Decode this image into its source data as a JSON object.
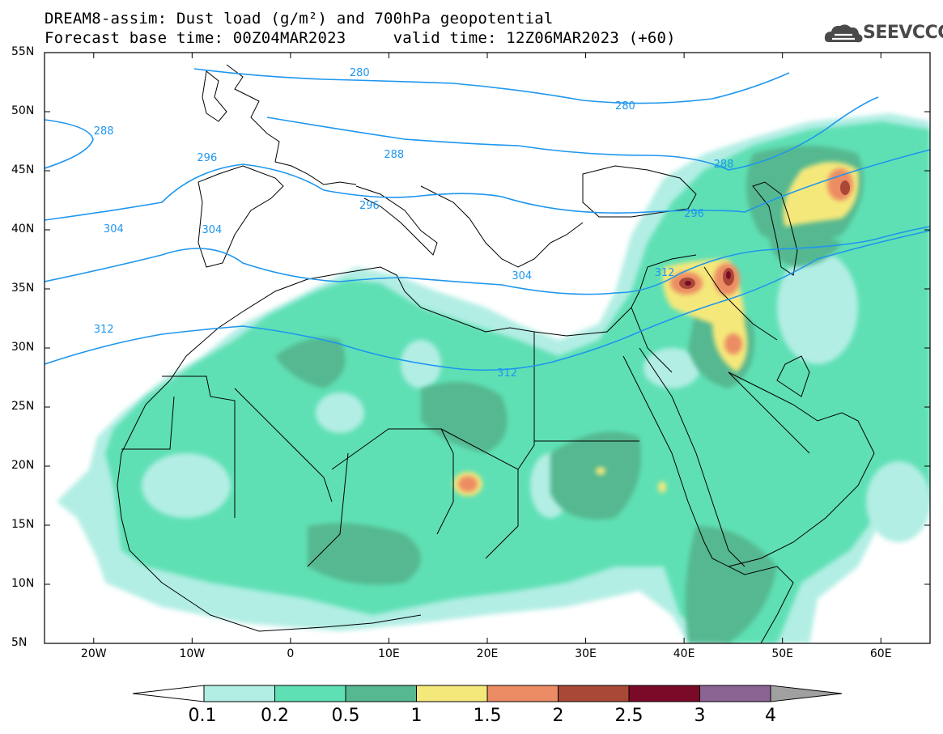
{
  "header": {
    "title_line1": "DREAM8-assim: Dust load (g/m²) and 700hPa geopotential",
    "title_line2": "Forecast base time: 00Z04MAR2023     valid time: 12Z06MAR2023 (+60)",
    "logo_text": "SEEVCCC",
    "logo_icon": "cloud-icon"
  },
  "map": {
    "lon_range": [
      -25,
      65
    ],
    "lat_range": [
      5,
      55
    ],
    "lat_labels": [
      "55N",
      "50N",
      "45N",
      "40N",
      "35N",
      "30N",
      "25N",
      "20N",
      "15N",
      "10N",
      "5N"
    ],
    "lon_labels": [
      "20W",
      "10W",
      "0",
      "10E",
      "20E",
      "30E",
      "40E",
      "50E",
      "60E"
    ],
    "contour_labels": [
      "280",
      "280",
      "288",
      "288",
      "288",
      "296",
      "296",
      "296",
      "304",
      "304",
      "304",
      "312",
      "312",
      "312"
    ],
    "contour_color": "#1e96ee"
  },
  "colorbar": {
    "labels": [
      "0.1",
      "0.2",
      "0.5",
      "1",
      "1.5",
      "2",
      "2.5",
      "3",
      "4"
    ],
    "colors": [
      "#b2eee4",
      "#5fe0b4",
      "#55b890",
      "#f5e87a",
      "#ec8c64",
      "#aa4838",
      "#7a0a28",
      "#8c6494"
    ],
    "under_color": "#ffffff",
    "over_color": "#a0a0a0"
  }
}
